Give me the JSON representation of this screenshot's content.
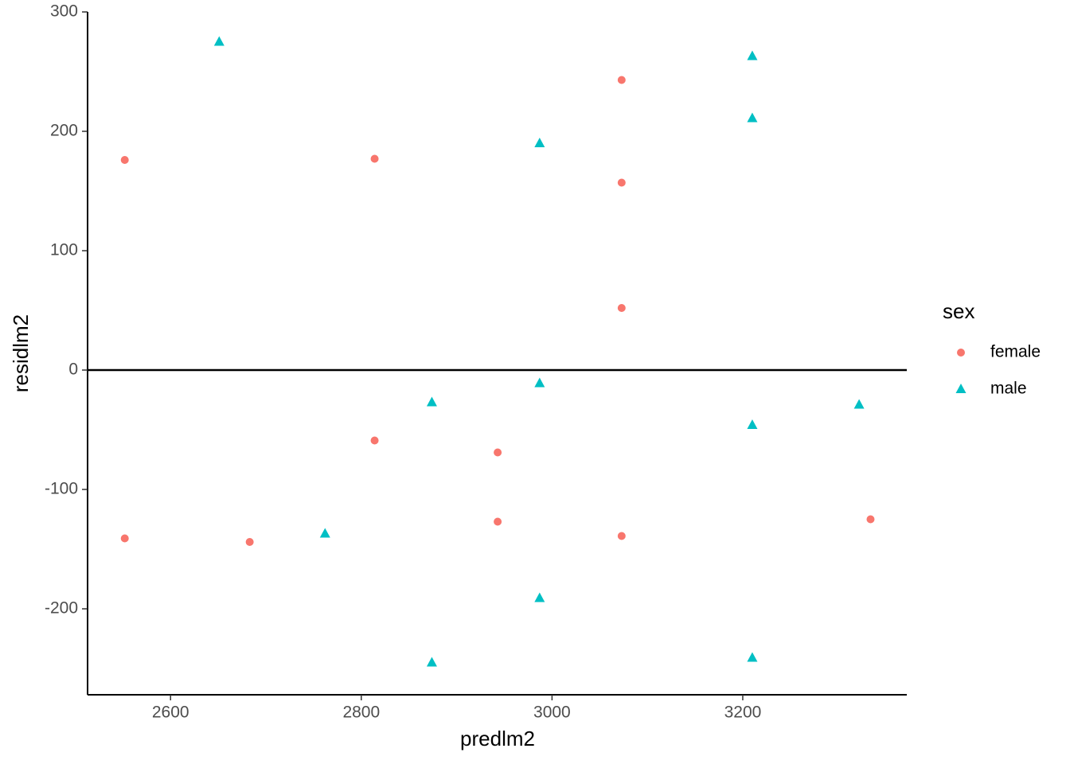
{
  "chart_data": {
    "type": "scatter",
    "x_label": "predlm2",
    "y_label": "residlm2",
    "legend_title": "sex",
    "xlim": [
      2513,
      3372
    ],
    "ylim": [
      -272,
      300
    ],
    "xticks": [
      2600,
      2800,
      3000,
      3200
    ],
    "yticks": [
      -200,
      -100,
      0,
      100,
      200,
      300
    ],
    "hline": 0,
    "legend": "right",
    "series": [
      {
        "name": "female",
        "color": "#F8766D",
        "shape": "circle",
        "x": [
          2552,
          2552,
          2683,
          2814,
          2814,
          2943,
          2943,
          3073,
          3073,
          3073,
          3073,
          3334
        ],
        "values": [
          176,
          -141,
          -144,
          177,
          -59,
          -69,
          -127,
          243,
          157,
          52,
          -139,
          -125
        ]
      },
      {
        "name": "male",
        "color": "#00BFC4",
        "shape": "triangle",
        "x": [
          2651,
          2762,
          2874,
          2874,
          2987,
          2987,
          2987,
          3210,
          3210,
          3210,
          3210,
          3322
        ],
        "values": [
          275,
          -137,
          -27,
          -245,
          190,
          -11,
          -191,
          263,
          211,
          -46,
          -241,
          -29
        ]
      }
    ]
  }
}
